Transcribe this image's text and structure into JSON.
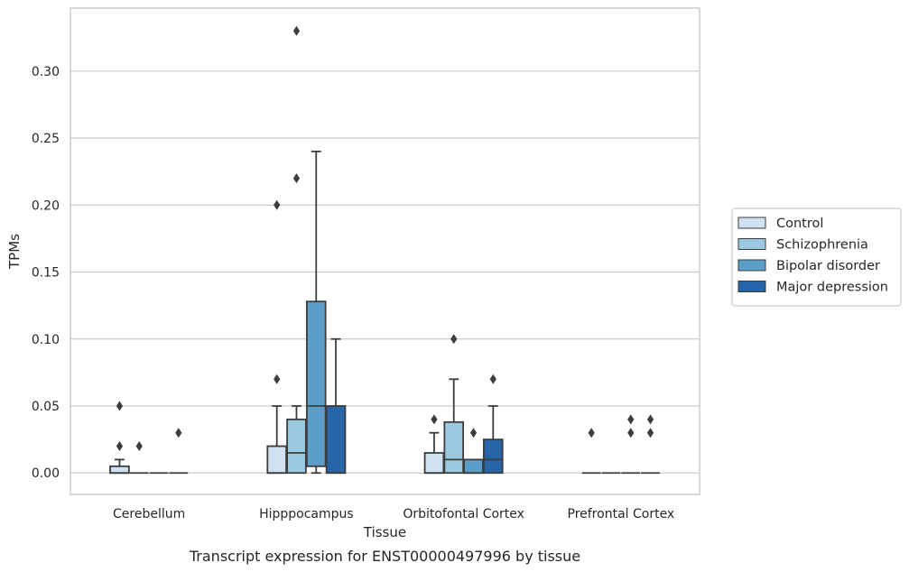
{
  "chart_data": {
    "type": "box",
    "title": "",
    "caption": "Transcript expression for ENST00000497996 by tissue",
    "xlabel": "Tissue",
    "ylabel": "TPMs",
    "ylim": [
      -0.016,
      0.347
    ],
    "yticks": [
      0.0,
      0.05,
      0.1,
      0.15,
      0.2,
      0.25,
      0.3
    ],
    "ytick_labels": [
      "0.00",
      "0.05",
      "0.10",
      "0.15",
      "0.20",
      "0.25",
      "0.30"
    ],
    "grid": "horizontal",
    "legend_position": "right",
    "categories": [
      "Cerebellum",
      "Hipppocampus",
      "Orbitofontal Cortex",
      "Prefrontal Cortex"
    ],
    "series": [
      {
        "name": "Control",
        "color": "#d0e1f2",
        "boxes": [
          {
            "q1": 0.0,
            "median": 0.0,
            "q3": 0.005,
            "whisker_low": 0.0,
            "whisker_high": 0.01,
            "outliers": [
              0.02,
              0.05
            ]
          },
          {
            "q1": 0.0,
            "median": 0.0,
            "q3": 0.02,
            "whisker_low": 0.0,
            "whisker_high": 0.05,
            "outliers": [
              0.07,
              0.2
            ]
          },
          {
            "q1": 0.0,
            "median": 0.0,
            "q3": 0.015,
            "whisker_low": 0.0,
            "whisker_high": 0.03,
            "outliers": [
              0.04
            ]
          },
          {
            "q1": 0.0,
            "median": 0.0,
            "q3": 0.0,
            "whisker_low": 0.0,
            "whisker_high": 0.0,
            "outliers": [
              0.03
            ]
          }
        ]
      },
      {
        "name": "Schizophrenia",
        "color": "#9ac8e0",
        "boxes": [
          {
            "q1": 0.0,
            "median": 0.0,
            "q3": 0.0,
            "whisker_low": 0.0,
            "whisker_high": 0.0,
            "outliers": [
              0.02
            ]
          },
          {
            "q1": 0.0,
            "median": 0.015,
            "q3": 0.04,
            "whisker_low": 0.0,
            "whisker_high": 0.05,
            "outliers": [
              0.22,
              0.33
            ]
          },
          {
            "q1": 0.0,
            "median": 0.01,
            "q3": 0.038,
            "whisker_low": 0.0,
            "whisker_high": 0.07,
            "outliers": [
              0.1
            ]
          },
          {
            "q1": 0.0,
            "median": 0.0,
            "q3": 0.0,
            "whisker_low": 0.0,
            "whisker_high": 0.0,
            "outliers": []
          }
        ]
      },
      {
        "name": "Bipolar disorder",
        "color": "#5a9ec9",
        "boxes": [
          {
            "q1": 0.0,
            "median": 0.0,
            "q3": 0.0,
            "whisker_low": 0.0,
            "whisker_high": 0.0,
            "outliers": []
          },
          {
            "q1": 0.005,
            "median": 0.05,
            "q3": 0.128,
            "whisker_low": 0.0,
            "whisker_high": 0.24,
            "outliers": []
          },
          {
            "q1": 0.0,
            "median": 0.0,
            "q3": 0.01,
            "whisker_low": 0.0,
            "whisker_high": 0.01,
            "outliers": [
              0.03
            ]
          },
          {
            "q1": 0.0,
            "median": 0.0,
            "q3": 0.0,
            "whisker_low": 0.0,
            "whisker_high": 0.0,
            "outliers": [
              0.03,
              0.04
            ]
          }
        ]
      },
      {
        "name": "Major depression",
        "color": "#2565a8",
        "boxes": [
          {
            "q1": 0.0,
            "median": 0.0,
            "q3": 0.0,
            "whisker_low": 0.0,
            "whisker_high": 0.0,
            "outliers": [
              0.03
            ]
          },
          {
            "q1": 0.0,
            "median": 0.0,
            "q3": 0.05,
            "whisker_low": 0.0,
            "whisker_high": 0.1,
            "outliers": []
          },
          {
            "q1": 0.0,
            "median": 0.01,
            "q3": 0.025,
            "whisker_low": 0.0,
            "whisker_high": 0.05,
            "outliers": [
              0.07
            ]
          },
          {
            "q1": 0.0,
            "median": 0.0,
            "q3": 0.0,
            "whisker_low": 0.0,
            "whisker_high": 0.0,
            "outliers": [
              0.03,
              0.04
            ]
          }
        ]
      }
    ]
  }
}
